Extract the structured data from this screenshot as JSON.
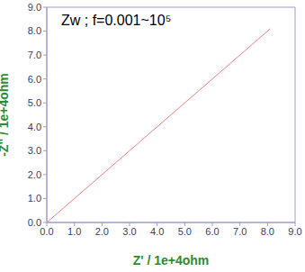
{
  "chart_data": {
    "type": "line",
    "title": "Zw ; f=0.001~10⁵",
    "x_label": "Z' / 1e+4ohm",
    "y_label": "-Z'' / 1e+4ohm",
    "series": [
      {
        "name": "Zw",
        "color": "#f08080",
        "x": [
          0,
          8.1
        ],
        "values": [
          0,
          8.1
        ]
      }
    ],
    "xlim": [
      0,
      9
    ],
    "ylim": [
      0,
      9
    ],
    "xticks": [
      {
        "value": 0,
        "label": "0.0"
      },
      {
        "value": 1,
        "label": "1.0"
      },
      {
        "value": 2,
        "label": "2.0"
      },
      {
        "value": 3,
        "label": "3.0"
      },
      {
        "value": 4,
        "label": "4.0"
      },
      {
        "value": 5,
        "label": "5.0"
      },
      {
        "value": 6,
        "label": "6.0"
      },
      {
        "value": 7,
        "label": "7.0"
      },
      {
        "value": 8,
        "label": "8.0"
      },
      {
        "value": 9,
        "label": "9.0"
      }
    ],
    "yticks": [
      {
        "value": 0,
        "label": "0.0"
      },
      {
        "value": 1,
        "label": "1.0"
      },
      {
        "value": 2,
        "label": "2.0"
      },
      {
        "value": 3,
        "label": "3.0"
      },
      {
        "value": 4,
        "label": "4.0"
      },
      {
        "value": 5,
        "label": "5.0"
      },
      {
        "value": 6,
        "label": "6.0"
      },
      {
        "value": 7,
        "label": "7.0"
      },
      {
        "value": 8,
        "label": "8.0"
      },
      {
        "value": 9,
        "label": "9.0"
      }
    ],
    "grid": false
  }
}
